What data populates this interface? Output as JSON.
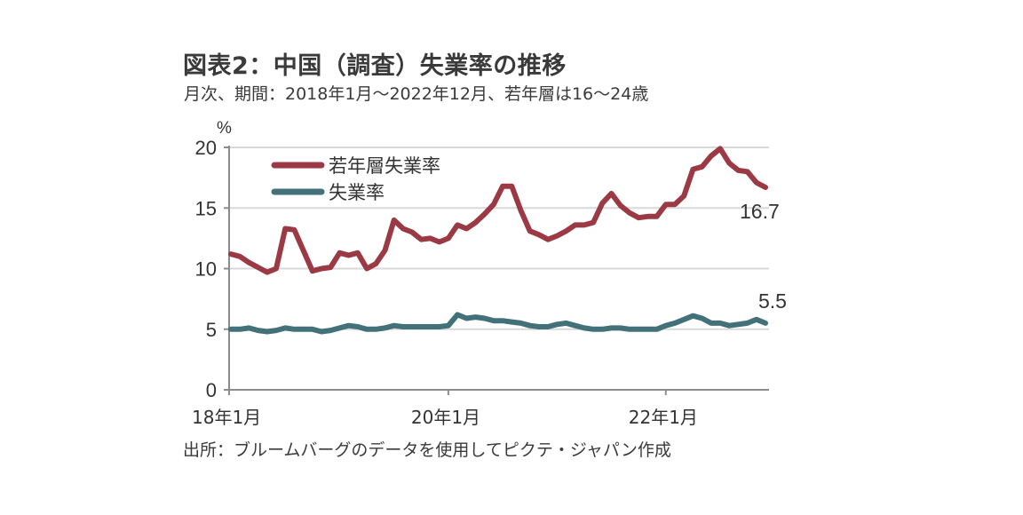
{
  "header": {
    "title": "図表2：中国（調査）失業率の推移",
    "subtitle": "月次、期間：2018年1月～2022年12月、若年層は16～24歳"
  },
  "footer": {
    "source": "出所：ブルームバーグのデータを使用してピクテ・ジャパン作成"
  },
  "chart_data": {
    "type": "line",
    "title": "図表2：中国（調査）失業率の推移",
    "subtitle": "月次、期間：2018年1月～2022年12月、若年層は16～24歳",
    "ylabel": "%",
    "xlabel": "",
    "ylim": [
      0,
      20
    ],
    "yticks": [
      0,
      5,
      10,
      15,
      20
    ],
    "ytick_labels": [
      "0",
      "5",
      "10",
      "15",
      "20"
    ],
    "xlim": [
      "2018-01",
      "2022-12"
    ],
    "xticks": [
      {
        "index": 0,
        "label": "18年1月"
      },
      {
        "index": 24,
        "label": "20年1月"
      },
      {
        "index": 48,
        "label": "22年1月"
      }
    ],
    "grid": "horizontal",
    "legend_position": "top-left",
    "series": [
      {
        "name": "若年層失業率",
        "color": "#9b3a45",
        "end_label": "16.7",
        "values": [
          11.2,
          11.0,
          10.5,
          10.1,
          9.7,
          10.0,
          13.3,
          13.2,
          11.5,
          9.8,
          10.0,
          10.1,
          11.3,
          11.1,
          11.3,
          10.0,
          10.4,
          11.5,
          14.0,
          13.3,
          13.0,
          12.4,
          12.5,
          12.2,
          12.5,
          13.6,
          13.3,
          13.8,
          14.5,
          15.3,
          16.8,
          16.8,
          14.8,
          13.1,
          12.8,
          12.4,
          12.7,
          13.1,
          13.6,
          13.6,
          13.8,
          15.4,
          16.2,
          15.2,
          14.6,
          14.2,
          14.3,
          14.3,
          15.3,
          15.3,
          16.0,
          18.2,
          18.4,
          19.3,
          19.9,
          18.7,
          18.1,
          18.0,
          17.1,
          16.7
        ]
      },
      {
        "name": "失業率",
        "color": "#43717a",
        "end_label": "5.5",
        "values": [
          5.0,
          5.0,
          5.1,
          4.9,
          4.8,
          4.9,
          5.1,
          5.0,
          5.0,
          5.0,
          4.8,
          4.9,
          5.1,
          5.3,
          5.2,
          5.0,
          5.0,
          5.1,
          5.3,
          5.2,
          5.2,
          5.2,
          5.2,
          5.2,
          5.3,
          6.2,
          5.9,
          6.0,
          5.9,
          5.7,
          5.7,
          5.6,
          5.5,
          5.3,
          5.2,
          5.2,
          5.4,
          5.5,
          5.3,
          5.1,
          5.0,
          5.0,
          5.1,
          5.1,
          5.0,
          5.0,
          5.0,
          5.0,
          5.3,
          5.5,
          5.8,
          6.1,
          5.9,
          5.5,
          5.5,
          5.3,
          5.4,
          5.5,
          5.8,
          5.5
        ]
      }
    ]
  }
}
